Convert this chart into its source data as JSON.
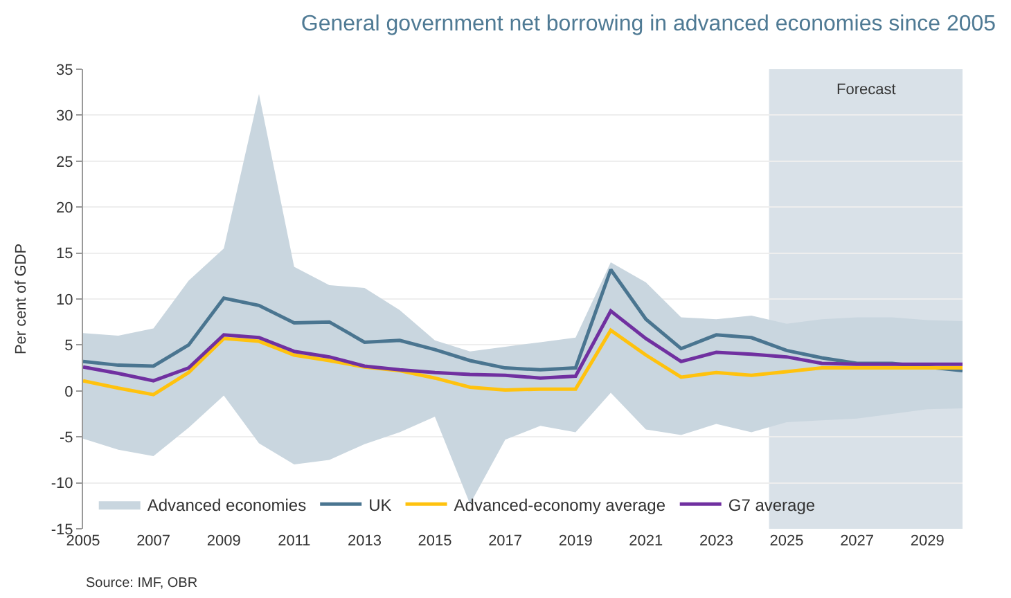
{
  "chart_data": {
    "type": "line",
    "title": "General government net borrowing in advanced economies since 2005",
    "ylabel": "Per cent of GDP",
    "x": [
      2005,
      2006,
      2007,
      2008,
      2009,
      2010,
      2011,
      2012,
      2013,
      2014,
      2015,
      2016,
      2017,
      2018,
      2019,
      2020,
      2021,
      2022,
      2023,
      2024,
      2025,
      2026,
      2027,
      2028,
      2029,
      2030
    ],
    "series": [
      {
        "name": "Advanced economies",
        "color": "#c9d6df",
        "values": [
          null,
          null,
          null,
          null,
          null,
          null,
          null,
          null,
          null,
          null,
          null,
          null,
          null,
          null,
          null,
          null,
          null,
          null,
          null,
          null,
          null,
          null,
          null,
          null,
          null,
          null
        ],
        "upper": [
          6.3,
          6.0,
          6.8,
          12,
          15.5,
          32.3,
          13.5,
          11.5,
          11.2,
          8.8,
          5.5,
          4.3,
          4.8,
          5.3,
          5.8,
          14,
          11.8,
          8,
          7.8,
          8.2,
          7.3,
          7.8,
          8,
          8,
          7.7,
          7.6
        ],
        "lower": [
          -5.2,
          -6.4,
          -7.1,
          -4,
          -0.5,
          -5.7,
          -8,
          -7.5,
          -5.8,
          -4.5,
          -2.8,
          -12.3,
          -5.3,
          -3.8,
          -4.5,
          -0.2,
          -4.2,
          -4.8,
          -3.6,
          -4.5,
          -3.4,
          -3.2,
          -3,
          -2.5,
          -2,
          -1.9
        ]
      },
      {
        "name": "UK",
        "color": "#4a7590",
        "values": [
          3.2,
          2.8,
          2.7,
          5.0,
          10.1,
          9.3,
          7.4,
          7.5,
          5.3,
          5.5,
          4.5,
          3.3,
          2.5,
          2.3,
          2.5,
          13.2,
          7.8,
          4.6,
          6.1,
          5.8,
          4.4,
          3.6,
          3.0,
          3.0,
          2.6,
          2.2
        ]
      },
      {
        "name": "Advanced-economy average",
        "color": "#ffc20e",
        "values": [
          1.1,
          0.3,
          -0.4,
          2.0,
          5.7,
          5.4,
          3.9,
          3.3,
          2.6,
          2.2,
          1.4,
          0.4,
          0.1,
          0.2,
          0.2,
          6.6,
          3.9,
          1.5,
          2.0,
          1.7,
          2.1,
          2.5,
          2.5,
          2.5,
          2.5,
          2.5
        ]
      },
      {
        "name": "G7 average",
        "color": "#7030a0",
        "values": [
          2.6,
          1.9,
          1.1,
          2.5,
          6.1,
          5.8,
          4.3,
          3.7,
          2.7,
          2.3,
          2.0,
          1.8,
          1.7,
          1.4,
          1.6,
          8.7,
          5.7,
          3.2,
          4.2,
          4.0,
          3.7,
          3.0,
          2.9,
          2.9,
          2.9,
          2.9
        ]
      }
    ],
    "xlim": [
      2005,
      2030
    ],
    "xticks": [
      2005,
      2007,
      2009,
      2011,
      2013,
      2015,
      2017,
      2019,
      2021,
      2023,
      2025,
      2027,
      2029
    ],
    "ylim": [
      -15,
      35
    ],
    "yticks": [
      -15,
      -10,
      -5,
      0,
      5,
      10,
      15,
      20,
      25,
      30,
      35
    ],
    "bands": [
      {
        "axis": "x",
        "from": 2024.5,
        "to": 2030,
        "label": "Forecast",
        "color": "#d9e1e8"
      }
    ],
    "annotations": [
      "Source: IMF, OBR"
    ],
    "grid": "y",
    "legend": "bottom",
    "marker": "none",
    "line_style": "solid"
  }
}
